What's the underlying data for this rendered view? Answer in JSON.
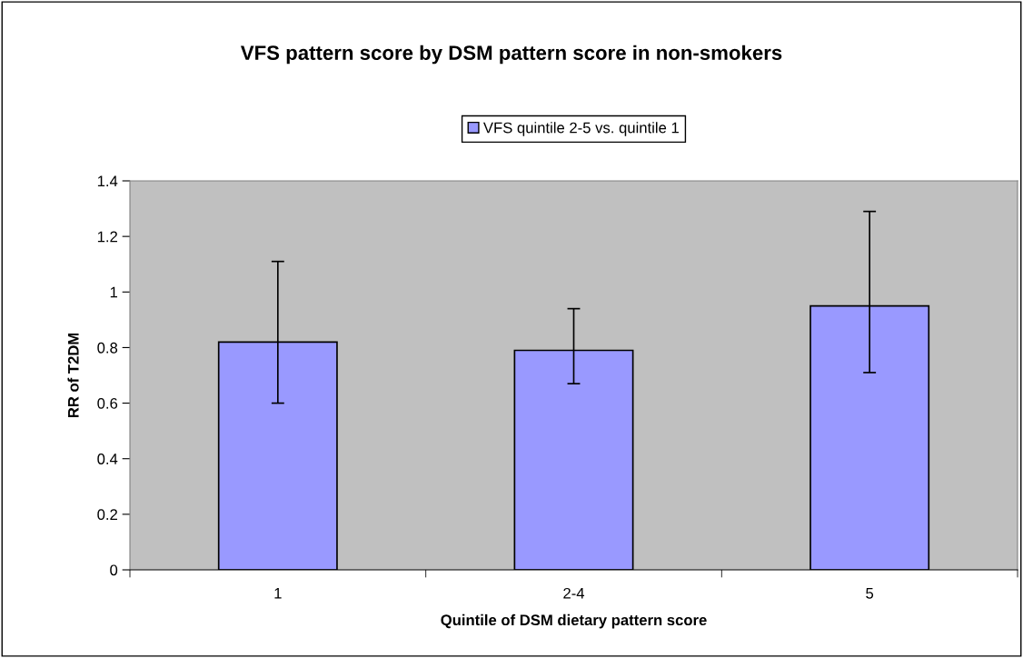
{
  "chart_data": {
    "type": "bar",
    "title": "VFS pattern score by DSM pattern score in non-smokers",
    "xlabel": "Quintile of DSM dietary pattern score",
    "ylabel": "RR of T2DM",
    "categories": [
      "1",
      "2-4",
      "5"
    ],
    "series": [
      {
        "name": "VFS quintile 2-5 vs. quintile 1",
        "color": "#9999ff",
        "values": [
          0.82,
          0.79,
          0.95
        ],
        "errors": [
          [
            0.6,
            1.11
          ],
          [
            0.67,
            0.94
          ],
          [
            0.71,
            1.29
          ]
        ]
      }
    ],
    "ylim": [
      0,
      1.4
    ],
    "yticks": [
      0,
      0.2,
      0.4,
      0.6,
      0.8,
      1,
      1.2,
      1.4
    ],
    "grid": false,
    "legend": "top"
  }
}
